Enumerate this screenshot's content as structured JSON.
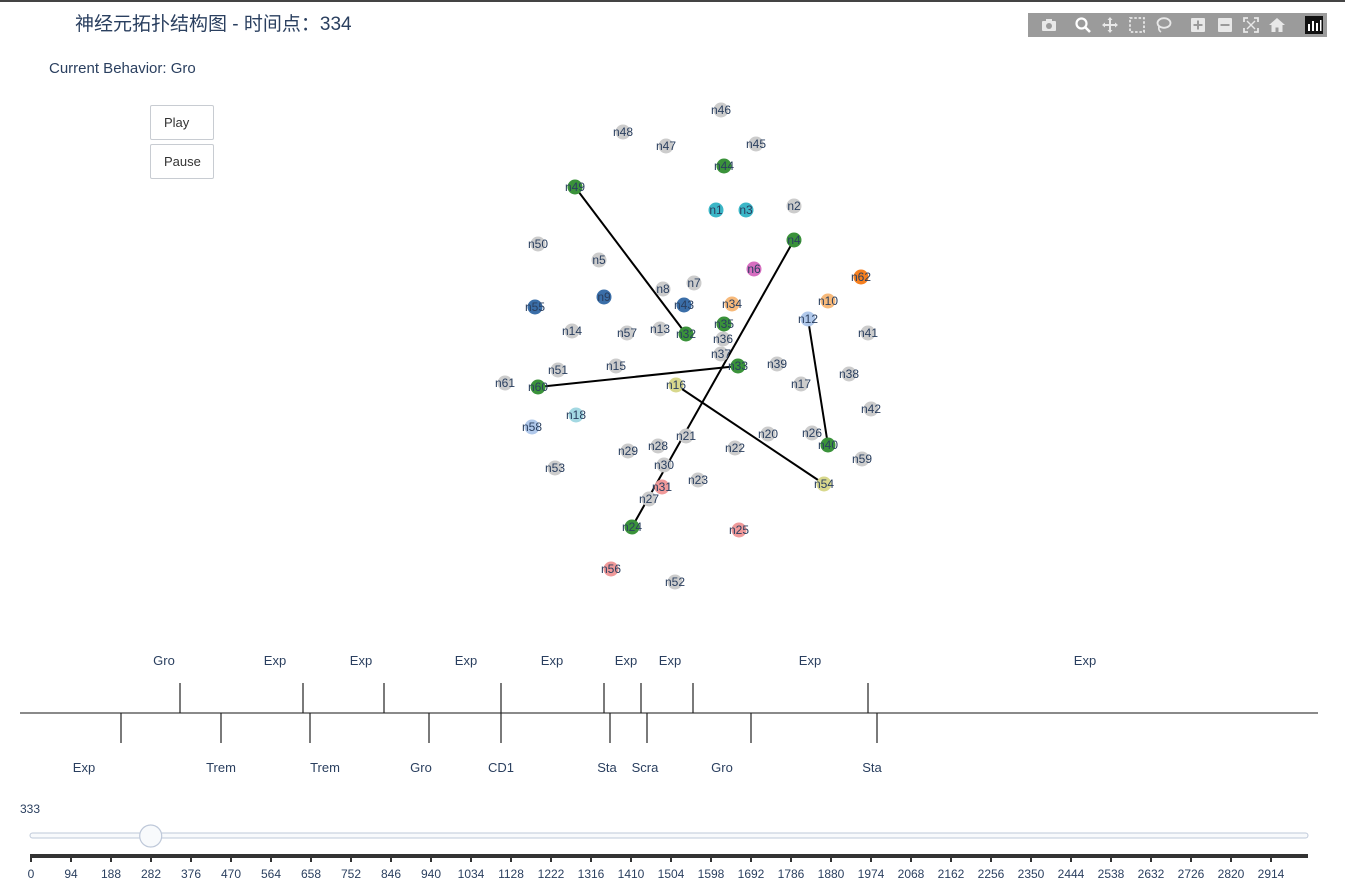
{
  "header": {
    "title": "神经元拓扑结构图 - 时间点：334",
    "behavior": "Current Behavior: Gro"
  },
  "controls": {
    "play_label": "Play",
    "pause_label": "Pause"
  },
  "modebar": {
    "icons": [
      "camera-icon",
      "zoom-icon",
      "pan-icon",
      "box-select-icon",
      "lasso-select-icon",
      "zoom-in-icon",
      "zoom-out-icon",
      "autoscale-icon",
      "reset-axes-icon",
      "plotly-logo-icon"
    ]
  },
  "colors": {
    "gray": "#cccccc",
    "green": "#3a923a",
    "cyan": "#3bb6c7",
    "pink": "#d66ec0",
    "orange": "#f57f20",
    "light_orange": "#f7b97a",
    "steel_blue": "#3a6ea8",
    "light_blue": "#b0c8ea",
    "light_cyan": "#a3d8e2",
    "olive": "#d8d88c",
    "salmon": "#f09a9a",
    "edge": "#000000"
  },
  "nodes": [
    {
      "id": "n46",
      "c": "gray"
    },
    {
      "id": "n48",
      "c": "gray"
    },
    {
      "id": "n47",
      "c": "gray"
    },
    {
      "id": "n45",
      "c": "gray"
    },
    {
      "id": "n44",
      "c": "green"
    },
    {
      "id": "n49",
      "c": "green"
    },
    {
      "id": "n1",
      "c": "cyan"
    },
    {
      "id": "n3",
      "c": "cyan"
    },
    {
      "id": "n2",
      "c": "gray"
    },
    {
      "id": "n4",
      "c": "green"
    },
    {
      "id": "n50",
      "c": "gray"
    },
    {
      "id": "n5",
      "c": "gray"
    },
    {
      "id": "n6",
      "c": "pink"
    },
    {
      "id": "n62",
      "c": "orange"
    },
    {
      "id": "n7",
      "c": "gray"
    },
    {
      "id": "n8",
      "c": "gray"
    },
    {
      "id": "n9",
      "c": "steel_blue"
    },
    {
      "id": "n55",
      "c": "steel_blue"
    },
    {
      "id": "n43",
      "c": "steel_blue"
    },
    {
      "id": "n34",
      "c": "light_orange"
    },
    {
      "id": "n10",
      "c": "light_orange"
    },
    {
      "id": "n12",
      "c": "light_blue"
    },
    {
      "id": "n41",
      "c": "gray"
    },
    {
      "id": "n14",
      "c": "gray"
    },
    {
      "id": "n57",
      "c": "gray"
    },
    {
      "id": "n13",
      "c": "gray"
    },
    {
      "id": "n32",
      "c": "green"
    },
    {
      "id": "n35",
      "c": "green"
    },
    {
      "id": "n36",
      "c": "gray"
    },
    {
      "id": "n37",
      "c": "gray"
    },
    {
      "id": "n33",
      "c": "green"
    },
    {
      "id": "n39",
      "c": "gray"
    },
    {
      "id": "n51",
      "c": "gray"
    },
    {
      "id": "n15",
      "c": "gray"
    },
    {
      "id": "n38",
      "c": "gray"
    },
    {
      "id": "n61",
      "c": "gray"
    },
    {
      "id": "n60",
      "c": "green"
    },
    {
      "id": "n16",
      "c": "olive"
    },
    {
      "id": "n17",
      "c": "gray"
    },
    {
      "id": "n42",
      "c": "gray"
    },
    {
      "id": "n18",
      "c": "light_cyan"
    },
    {
      "id": "n58",
      "c": "light_blue"
    },
    {
      "id": "n21",
      "c": "gray"
    },
    {
      "id": "n20",
      "c": "gray"
    },
    {
      "id": "n26",
      "c": "gray"
    },
    {
      "id": "n28",
      "c": "gray"
    },
    {
      "id": "n29",
      "c": "gray"
    },
    {
      "id": "n22",
      "c": "gray"
    },
    {
      "id": "n40",
      "c": "green"
    },
    {
      "id": "n59",
      "c": "gray"
    },
    {
      "id": "n30",
      "c": "gray"
    },
    {
      "id": "n53",
      "c": "gray"
    },
    {
      "id": "n23",
      "c": "gray"
    },
    {
      "id": "n31",
      "c": "salmon"
    },
    {
      "id": "n54",
      "c": "olive"
    },
    {
      "id": "n27",
      "c": "gray"
    },
    {
      "id": "n24",
      "c": "green"
    },
    {
      "id": "n25",
      "c": "salmon"
    },
    {
      "id": "n56",
      "c": "salmon"
    },
    {
      "id": "n52",
      "c": "gray"
    }
  ],
  "edges": [
    [
      "n49",
      "n32"
    ],
    [
      "n4",
      "n24"
    ],
    [
      "n12",
      "n40"
    ],
    [
      "n60",
      "n33"
    ],
    [
      "n16",
      "n54"
    ]
  ],
  "timeline": {
    "top": [
      {
        "label": "Gro",
        "t": 352
      },
      {
        "label": "Exp",
        "t": 611
      },
      {
        "label": "Exp",
        "t": 786
      },
      {
        "label": "Exp",
        "t": 1036
      },
      {
        "label": "Exp",
        "t": 1258
      },
      {
        "label": "Exp",
        "t": 1337
      },
      {
        "label": "Exp",
        "t": 1448
      },
      {
        "label": "Exp",
        "t": 1831
      }
    ],
    "top_label_positions": [
      "Gro",
      "Exp",
      "Exp",
      "Exp",
      "Exp",
      "Exp",
      "Exp",
      "Exp",
      "Exp"
    ],
    "extra_top": [
      {
        "label": "Exp"
      }
    ],
    "bottom": [
      {
        "label": "Exp",
        "t": 210
      },
      {
        "label": "Trem",
        "t": 432
      },
      {
        "label": "Trem",
        "t": 628
      },
      {
        "label": "Gro",
        "t": 904
      },
      {
        "label": "CD1",
        "t": 1036
      },
      {
        "label": "Sta",
        "t": 1349
      },
      {
        "label": "Scra",
        "t": 1429
      },
      {
        "label": "Gro",
        "t": 1573
      },
      {
        "label": "Sta",
        "t": 1851
      }
    ]
  },
  "slider": {
    "current_value": "333",
    "value": 333,
    "min": 0,
    "max": 3008,
    "ticks": [
      "0",
      "94",
      "188",
      "282",
      "376",
      "470",
      "564",
      "658",
      "752",
      "846",
      "940",
      "1034",
      "1128",
      "1222",
      "1316",
      "1410",
      "1504",
      "1598",
      "1692",
      "1786",
      "1880",
      "1974",
      "2068",
      "2162",
      "2256",
      "2350",
      "2444",
      "2538",
      "2632",
      "2726",
      "2820",
      "2914"
    ]
  }
}
